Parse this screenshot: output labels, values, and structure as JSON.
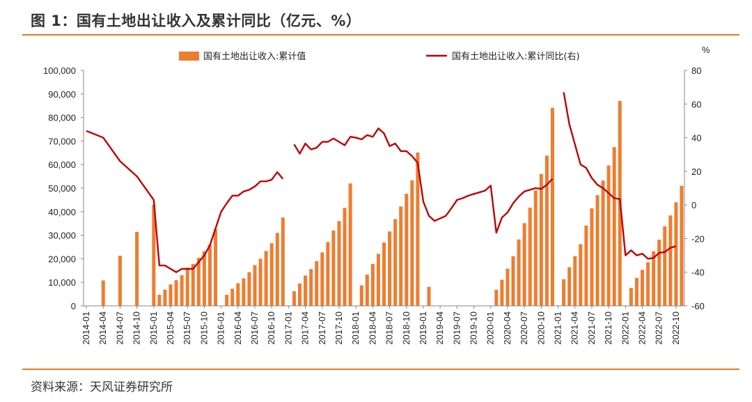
{
  "header": {
    "title": "图 1：国有土地出让收入及累计同比（亿元、%）"
  },
  "footer": {
    "source": "资料来源：天风证券研究所"
  },
  "chart_data": {
    "type": "bar+line",
    "title": "图 1：国有土地出让收入及累计同比（亿元、%）",
    "y_right_unit": "%",
    "legend": {
      "placement": "top",
      "bar_label": "国有土地出让收入:累计值",
      "line_label": "国有土地出让收入:累计同比(右)"
    },
    "colors": {
      "bar": "#ED7D31",
      "line": "#C00000",
      "accent": "#E8761E"
    },
    "y_left": {
      "min": 0,
      "max": 100000,
      "ticks": [
        "0",
        "10,000",
        "20,000",
        "30,000",
        "40,000",
        "50,000",
        "60,000",
        "70,000",
        "80,000",
        "90,000",
        "100,000"
      ]
    },
    "y_right": {
      "min": -60,
      "max": 80,
      "ticks": [
        "-60",
        "-40",
        "-20",
        "0",
        "20",
        "40",
        "60",
        "80"
      ]
    },
    "x_tick_labels": [
      "2014-01",
      "2014-04",
      "2014-07",
      "2014-10",
      "2015-01",
      "2015-04",
      "2015-07",
      "2015-10",
      "2016-01",
      "2016-04",
      "2016-07",
      "2016-10",
      "2017-01",
      "2017-04",
      "2017-07",
      "2017-10",
      "2018-01",
      "2018-04",
      "2018-07",
      "2018-10",
      "2019-01",
      "2019-04",
      "2019-07",
      "2019-10",
      "2020-01",
      "2020-04",
      "2020-07",
      "2020-10",
      "2021-01",
      "2021-04",
      "2021-07",
      "2021-10",
      "2022-01",
      "2022-04",
      "2022-07",
      "2022-10"
    ],
    "months": [
      "2014-01",
      "2014-02",
      "2014-03",
      "2014-04",
      "2014-05",
      "2014-06",
      "2014-07",
      "2014-08",
      "2014-09",
      "2014-10",
      "2014-11",
      "2014-12",
      "2015-01",
      "2015-02",
      "2015-03",
      "2015-04",
      "2015-05",
      "2015-06",
      "2015-07",
      "2015-08",
      "2015-09",
      "2015-10",
      "2015-11",
      "2015-12",
      "2016-01",
      "2016-02",
      "2016-03",
      "2016-04",
      "2016-05",
      "2016-06",
      "2016-07",
      "2016-08",
      "2016-09",
      "2016-10",
      "2016-11",
      "2016-12",
      "2017-01",
      "2017-02",
      "2017-03",
      "2017-04",
      "2017-05",
      "2017-06",
      "2017-07",
      "2017-08",
      "2017-09",
      "2017-10",
      "2017-11",
      "2017-12",
      "2018-01",
      "2018-02",
      "2018-03",
      "2018-04",
      "2018-05",
      "2018-06",
      "2018-07",
      "2018-08",
      "2018-09",
      "2018-10",
      "2018-11",
      "2018-12",
      "2019-01",
      "2019-02",
      "2019-03",
      "2019-04",
      "2019-05",
      "2019-06",
      "2019-07",
      "2019-08",
      "2019-09",
      "2019-10",
      "2019-11",
      "2019-12",
      "2020-01",
      "2020-02",
      "2020-03",
      "2020-04",
      "2020-05",
      "2020-06",
      "2020-07",
      "2020-08",
      "2020-09",
      "2020-10",
      "2020-11",
      "2020-12",
      "2021-01",
      "2021-02",
      "2021-03",
      "2021-04",
      "2021-05",
      "2021-06",
      "2021-07",
      "2021-08",
      "2021-09",
      "2021-10",
      "2021-11",
      "2021-12",
      "2022-01",
      "2022-02",
      "2022-03",
      "2022-04",
      "2022-05",
      "2022-06",
      "2022-07",
      "2022-08",
      "2022-09",
      "2022-10",
      "2022-11"
    ],
    "series": [
      {
        "name": "国有土地出让收入:累计值",
        "type": "bar",
        "axis": "left",
        "values": [
          null,
          null,
          null,
          10800,
          null,
          null,
          21300,
          null,
          null,
          31400,
          null,
          null,
          42900,
          4700,
          6900,
          9100,
          10900,
          13000,
          16200,
          17800,
          20400,
          23200,
          26000,
          32500,
          null,
          4700,
          7300,
          9600,
          11700,
          14300,
          17300,
          20000,
          23300,
          26600,
          31000,
          37500,
          null,
          6200,
          9500,
          12900,
          15600,
          19000,
          22700,
          27100,
          32000,
          36000,
          41600,
          52000,
          null,
          8700,
          13300,
          17800,
          22100,
          26900,
          31600,
          36800,
          42200,
          47600,
          53300,
          65100,
          null,
          8100,
          null,
          null,
          null,
          null,
          null,
          null,
          null,
          null,
          null,
          null,
          null,
          6800,
          11100,
          15800,
          21100,
          28200,
          35100,
          41700,
          49000,
          56000,
          63800,
          84100,
          null,
          11300,
          16400,
          21100,
          26200,
          34100,
          41400,
          47000,
          53200,
          59600,
          67400,
          87000,
          null,
          7600,
          11900,
          15300,
          18500,
          23200,
          28100,
          33800,
          38400,
          44000,
          51000
        ]
      },
      {
        "name": "国有土地出让收入:累计同比(右)",
        "type": "line",
        "axis": "right",
        "values": [
          44,
          null,
          null,
          40,
          null,
          null,
          26,
          null,
          null,
          17,
          null,
          null,
          3,
          -36,
          -36,
          -38,
          -40,
          -38,
          -38,
          -38,
          -34,
          -30,
          -24,
          -14,
          -4,
          1,
          5.5,
          5.5,
          8,
          9,
          11,
          14,
          14,
          15,
          19.5,
          15.5,
          null,
          36,
          30.5,
          36.5,
          33,
          34,
          37.5,
          37.5,
          39.5,
          37.5,
          35.5,
          40.5,
          40,
          39,
          41.5,
          40.5,
          45.5,
          42.5,
          35,
          36.5,
          32,
          32,
          29,
          25,
          2,
          -6.5,
          -9.5,
          -8,
          -6.5,
          -2,
          3,
          4,
          5.5,
          6.5,
          7.5,
          8.5,
          11.5,
          -16.5,
          -7.5,
          -4.5,
          1,
          5,
          8,
          9,
          10,
          9.5,
          12,
          15.5,
          null,
          67,
          48,
          36,
          24,
          22,
          16,
          12,
          10,
          7,
          4,
          3.5,
          -30,
          -27,
          -30,
          -29,
          -32,
          -31.5,
          -28.5,
          -28,
          -25.5,
          -24.5
        ]
      }
    ]
  }
}
